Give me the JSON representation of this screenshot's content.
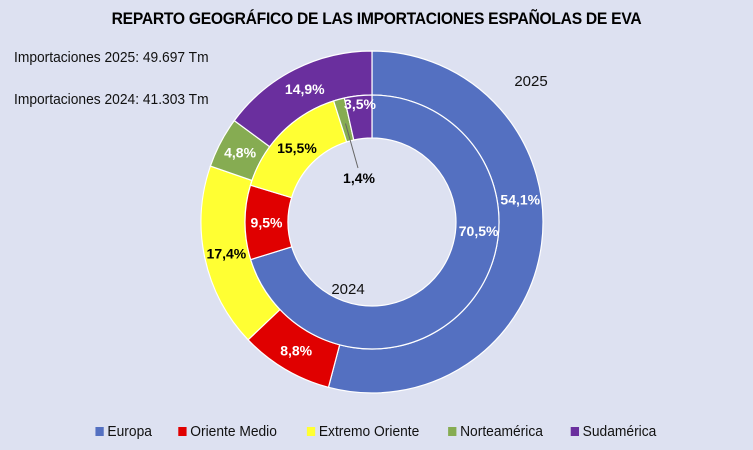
{
  "chart_data": {
    "type": "pie",
    "subtype": "doughnut",
    "title": "REPARTO GEOGRÁFICO DE LAS IMPORTACIONES ESPAÑOLAS DE EVA",
    "annotations": [
      "Importaciones 2025: 49.697 Tm",
      "Importaciones 2024: 41.303 Tm"
    ],
    "ring_labels": {
      "outer": "2025",
      "inner": "2024"
    },
    "categories": [
      "Europa",
      "Oriente Medio",
      "Extremo Oriente",
      "Norteamérica",
      "Sudamérica"
    ],
    "colors": [
      "#5470c1",
      "#e00000",
      "#ffff33",
      "#86ac52",
      "#6a2f9e"
    ],
    "series": [
      {
        "name": "2025",
        "ring": "outer",
        "values": [
          54.1,
          8.8,
          17.4,
          4.8,
          14.9
        ],
        "labels": [
          "54,1%",
          "8,8%",
          "17,4%",
          "4,8%",
          "14,9%"
        ],
        "label_colors": [
          "#ffffff",
          "#ffffff",
          "#000000",
          "#ffffff",
          "#ffffff"
        ]
      },
      {
        "name": "2024",
        "ring": "inner",
        "values": [
          70.5,
          9.5,
          15.5,
          1.4,
          3.5
        ],
        "labels": [
          "70,5%",
          "9,5%",
          "15,5%",
          "1,4%",
          "3,5%"
        ],
        "label_colors": [
          "#ffffff",
          "#ffffff",
          "#000000",
          "#000000",
          "#ffffff"
        ]
      }
    ],
    "legend_position": "bottom"
  }
}
